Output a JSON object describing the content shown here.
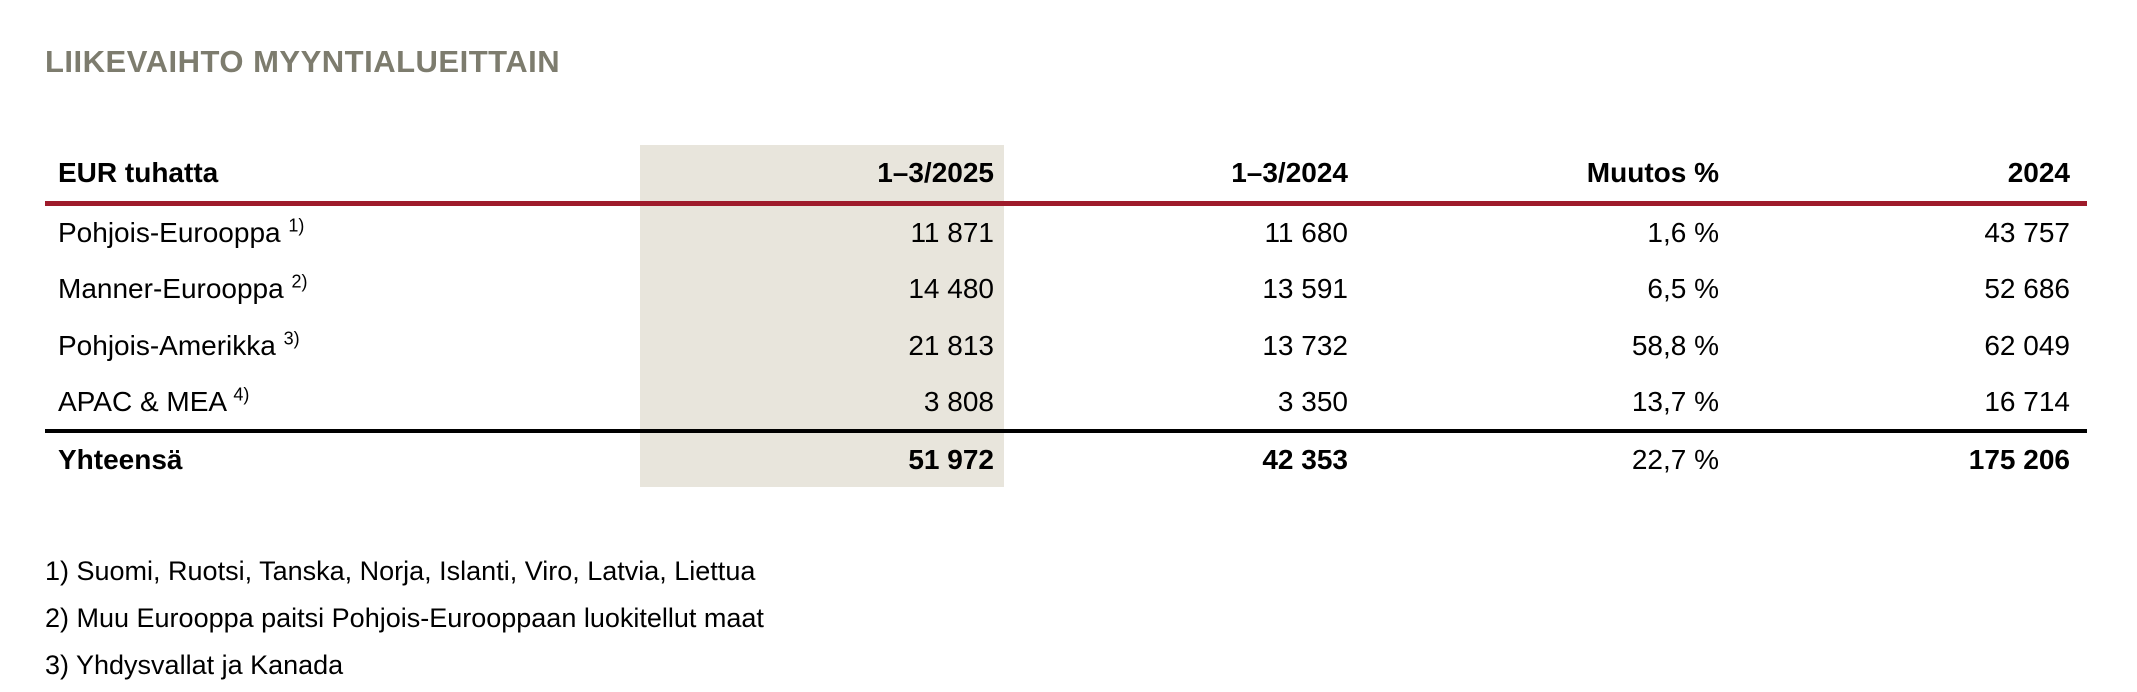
{
  "title": "LIIKEVAIHTO MYYNTIALUEITTAIN",
  "table": {
    "columns": {
      "label": "EUR tuhatta",
      "period_current": "1–3/2025",
      "period_prior": "1–3/2024",
      "change": "Muutos %",
      "full_year": "2024"
    },
    "rows": [
      {
        "label": "Pohjois-Eurooppa",
        "footnote": "1)",
        "period_current": "11 871",
        "period_prior": "11 680",
        "change": "1,6 %",
        "full_year": "43 757"
      },
      {
        "label": "Manner-Eurooppa",
        "footnote": "2)",
        "period_current": "14 480",
        "period_prior": "13 591",
        "change": "6,5 %",
        "full_year": "52 686"
      },
      {
        "label": "Pohjois-Amerikka",
        "footnote": "3)",
        "period_current": "21 813",
        "period_prior": "13 732",
        "change": "58,8 %",
        "full_year": "62 049"
      },
      {
        "label": "APAC & MEA",
        "footnote": "4)",
        "period_current": "3 808",
        "period_prior": "3 350",
        "change": "13,7 %",
        "full_year": "16 714"
      }
    ],
    "total": {
      "label": "Yhteensä",
      "period_current": "51 972",
      "period_prior": "42 353",
      "change": "22,7 %",
      "full_year": "175 206"
    }
  },
  "footnotes": [
    "1) Suomi, Ruotsi, Tanska, Norja, Islanti, Viro, Latvia, Liettua",
    "2) Muu Eurooppa paitsi Pohjois-Eurooppaan luokitellut maat",
    "3) Yhdysvallat ja Kanada"
  ],
  "colors": {
    "title": "#7d7c6e",
    "header_rule": "#9e1b2b",
    "highlight_column": "#e8e5dc",
    "total_rule": "#000000"
  }
}
